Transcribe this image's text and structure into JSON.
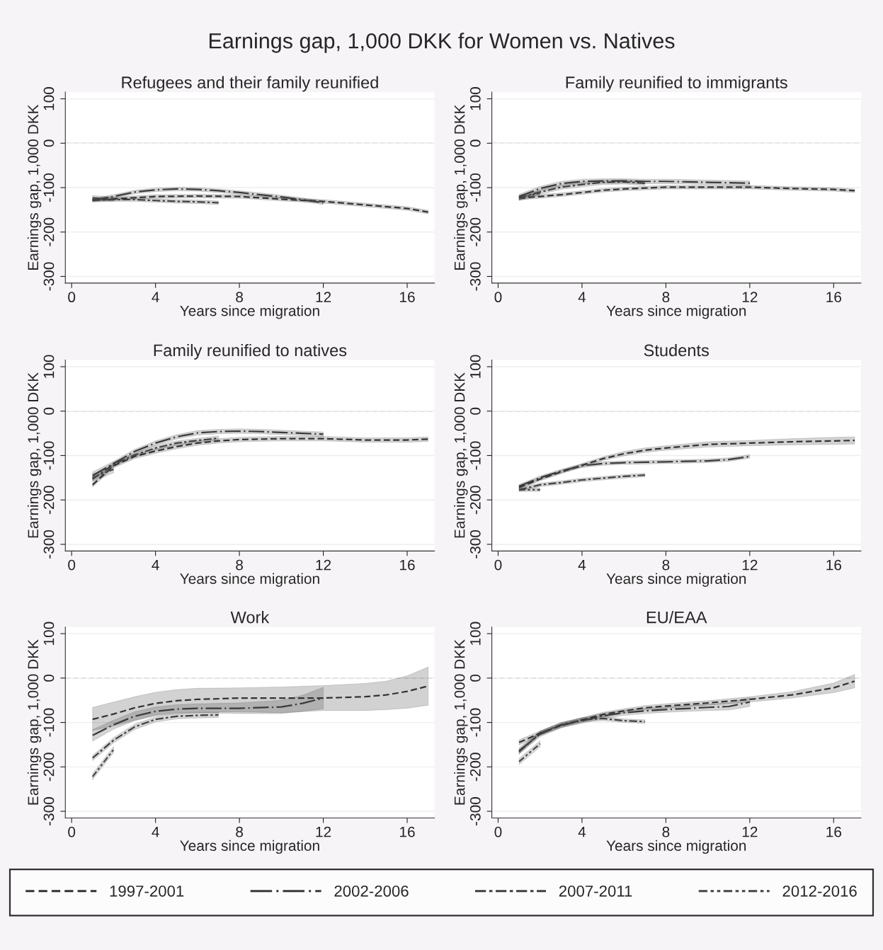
{
  "chart_data": [
    {
      "type": "line",
      "title": "Refugees and their family reunified",
      "xlabel": "Years since migration",
      "ylabel": "Earnings gap, 1,000 DKK",
      "annotations": [
        "Earnings gap, 1,000 DKK for Women vs. Natives"
      ],
      "xlim": [
        -0.3,
        17.3
      ],
      "ylim": [
        -315,
        115
      ],
      "xticks": [
        0,
        4,
        8,
        12,
        16
      ],
      "yticks": [
        -300,
        -200,
        -100,
        0,
        100
      ],
      "grid": "y",
      "ref_lines": [
        {
          "axis": "y",
          "value": 0,
          "color": "#aaaaaa",
          "line_style": "dashed"
        }
      ],
      "series": [
        {
          "color": "#333333",
          "line_style": "dashed",
          "x": [
            1,
            4,
            6,
            8,
            10,
            12,
            14,
            16,
            17
          ],
          "values": [
            -128,
            -120,
            -119,
            -120,
            -126,
            -131,
            -139,
            -147,
            -155
          ],
          "lower": [
            -132,
            -124,
            -123,
            -124,
            -130,
            -135,
            -143,
            -151,
            -159
          ],
          "upper": [
            -124,
            -116,
            -115,
            -116,
            -122,
            -127,
            -135,
            -143,
            -151
          ]
        },
        {
          "color": "#3a3a3a",
          "line_style": "longdashdot",
          "x": [
            1,
            2,
            3,
            4,
            5,
            6,
            7,
            8,
            9,
            10,
            11,
            12
          ],
          "values": [
            -128,
            -120,
            -110,
            -105,
            -103,
            -104,
            -107,
            -111,
            -116,
            -121,
            -127,
            -134
          ],
          "lower": [
            -132,
            -124,
            -114,
            -109,
            -107,
            -108,
            -111,
            -115,
            -120,
            -125,
            -131,
            -138
          ],
          "upper": [
            -124,
            -116,
            -106,
            -101,
            -99,
            -100,
            -103,
            -107,
            -112,
            -117,
            -123,
            -130
          ]
        },
        {
          "color": "#404040",
          "line_style": "dashdot",
          "x": [
            1,
            2,
            3,
            4,
            5,
            6,
            7
          ],
          "values": [
            -128,
            -127,
            -127,
            -129,
            -131,
            -132,
            -134
          ],
          "lower": [
            -132,
            -131,
            -131,
            -133,
            -135,
            -136,
            -138
          ],
          "upper": [
            -124,
            -123,
            -123,
            -125,
            -127,
            -128,
            -130
          ]
        },
        {
          "color": "#474747",
          "line_style": "dashdotdot",
          "x": [
            1,
            2
          ],
          "values": [
            -123,
            -126
          ],
          "lower": [
            -128,
            -131
          ],
          "upper": [
            -118,
            -121
          ]
        }
      ]
    },
    {
      "type": "line",
      "title": "Family reunified to immigrants",
      "xlabel": "Years since migration",
      "ylabel": "Earnings gap, 1,000 DKK",
      "xlim": [
        -0.3,
        17.3
      ],
      "ylim": [
        -315,
        115
      ],
      "xticks": [
        0,
        4,
        8,
        12,
        16
      ],
      "yticks": [
        -300,
        -200,
        -100,
        0,
        100
      ],
      "grid": "y",
      "ref_lines": [
        {
          "axis": "y",
          "value": 0,
          "color": "#aaaaaa",
          "line_style": "dashed"
        }
      ],
      "series": [
        {
          "color": "#333333",
          "line_style": "dashed",
          "x": [
            1,
            2,
            3,
            4,
            5,
            6,
            7,
            8,
            10,
            12,
            14,
            16,
            17
          ],
          "values": [
            -124,
            -120,
            -116,
            -111,
            -106,
            -103,
            -101,
            -99,
            -99,
            -99,
            -102,
            -104,
            -107
          ],
          "lower": [
            -128,
            -124,
            -120,
            -115,
            -110,
            -107,
            -105,
            -103,
            -103,
            -103,
            -106,
            -108,
            -111
          ],
          "upper": [
            -120,
            -116,
            -112,
            -107,
            -102,
            -99,
            -97,
            -95,
            -95,
            -95,
            -98,
            -100,
            -103
          ]
        },
        {
          "color": "#3a3a3a",
          "line_style": "longdashdot",
          "x": [
            1,
            2,
            3,
            4,
            5,
            6,
            7,
            8,
            9,
            10,
            11,
            12
          ],
          "values": [
            -120,
            -102,
            -91,
            -86,
            -85,
            -85,
            -86,
            -86,
            -87,
            -88,
            -89,
            -90
          ],
          "lower": [
            -125,
            -107,
            -96,
            -91,
            -90,
            -90,
            -91,
            -91,
            -92,
            -93,
            -94,
            -95
          ],
          "upper": [
            -115,
            -97,
            -86,
            -81,
            -80,
            -80,
            -81,
            -81,
            -82,
            -83,
            -84,
            -85
          ]
        },
        {
          "color": "#404040",
          "line_style": "dashdot",
          "x": [
            1,
            2,
            3,
            4,
            5,
            6,
            7
          ],
          "values": [
            -123,
            -110,
            -99,
            -93,
            -88,
            -87,
            -90
          ],
          "lower": [
            -128,
            -115,
            -104,
            -98,
            -93,
            -92,
            -95
          ],
          "upper": [
            -118,
            -105,
            -94,
            -88,
            -83,
            -82,
            -85
          ]
        },
        {
          "color": "#474747",
          "line_style": "dashdotdot",
          "x": [
            1,
            2
          ],
          "values": [
            -124,
            -112
          ],
          "lower": [
            -129,
            -117
          ],
          "upper": [
            -119,
            -107
          ]
        }
      ]
    },
    {
      "type": "line",
      "title": "Family reunified to natives",
      "xlabel": "Years since migration",
      "ylabel": "Earnings gap, 1,000 DKK",
      "xlim": [
        -0.3,
        17.3
      ],
      "ylim": [
        -315,
        115
      ],
      "xticks": [
        0,
        4,
        8,
        12,
        16
      ],
      "yticks": [
        -300,
        -200,
        -100,
        0,
        100
      ],
      "grid": "y",
      "ref_lines": [
        {
          "axis": "y",
          "value": 0,
          "color": "#aaaaaa",
          "line_style": "dashed"
        }
      ],
      "series": [
        {
          "color": "#333333",
          "line_style": "dashed",
          "x": [
            1,
            2,
            3,
            4,
            5,
            6,
            7,
            8,
            10,
            12,
            14,
            16,
            17
          ],
          "values": [
            -166,
            -123,
            -102,
            -90,
            -80,
            -72,
            -67,
            -64,
            -62,
            -62,
            -65,
            -65,
            -63
          ],
          "lower": [
            -171,
            -128,
            -107,
            -95,
            -85,
            -77,
            -72,
            -69,
            -67,
            -67,
            -70,
            -70,
            -68
          ],
          "upper": [
            -161,
            -118,
            -97,
            -85,
            -75,
            -67,
            -62,
            -59,
            -57,
            -57,
            -60,
            -60,
            -58
          ]
        },
        {
          "color": "#3a3a3a",
          "line_style": "longdashdot",
          "x": [
            1,
            2,
            3,
            4,
            5,
            6,
            7,
            8,
            9,
            10,
            11,
            12
          ],
          "values": [
            -145,
            -118,
            -91,
            -72,
            -58,
            -49,
            -46,
            -45,
            -46,
            -48,
            -50,
            -52
          ],
          "lower": [
            -153,
            -123,
            -96,
            -77,
            -63,
            -54,
            -51,
            -50,
            -51,
            -53,
            -55,
            -57
          ],
          "upper": [
            -137,
            -113,
            -86,
            -67,
            -53,
            -44,
            -41,
            -40,
            -41,
            -43,
            -45,
            -47
          ]
        },
        {
          "color": "#404040",
          "line_style": "dashdot",
          "x": [
            1,
            2,
            3,
            4,
            5,
            6,
            7
          ],
          "values": [
            -153,
            -120,
            -99,
            -83,
            -72,
            -66,
            -61
          ],
          "lower": [
            -158,
            -125,
            -104,
            -88,
            -77,
            -71,
            -66
          ],
          "upper": [
            -148,
            -115,
            -94,
            -78,
            -67,
            -61,
            -56
          ]
        },
        {
          "color": "#474747",
          "line_style": "dashdotdot",
          "x": [
            1,
            2
          ],
          "values": [
            -150,
            -131
          ],
          "lower": [
            -158,
            -139
          ],
          "upper": [
            -142,
            -123
          ]
        }
      ]
    },
    {
      "type": "line",
      "title": "Students",
      "xlabel": "Years since migration",
      "ylabel": "Earnings gap, 1,000 DKK",
      "xlim": [
        -0.3,
        17.3
      ],
      "ylim": [
        -315,
        115
      ],
      "xticks": [
        0,
        4,
        8,
        12,
        16
      ],
      "yticks": [
        -300,
        -200,
        -100,
        0,
        100
      ],
      "grid": "y",
      "ref_lines": [
        {
          "axis": "y",
          "value": 0,
          "color": "#aaaaaa",
          "line_style": "dashed"
        }
      ],
      "series": [
        {
          "color": "#333333",
          "line_style": "dashed",
          "x": [
            1,
            2,
            3,
            4,
            5,
            6,
            7,
            8,
            10,
            12,
            14,
            16,
            17
          ],
          "values": [
            -172,
            -153,
            -137,
            -122,
            -107,
            -96,
            -88,
            -83,
            -75,
            -72,
            -69,
            -67,
            -66
          ],
          "lower": [
            -176,
            -157,
            -141,
            -126,
            -111,
            -101,
            -93,
            -88,
            -81,
            -78,
            -76,
            -75,
            -74
          ],
          "upper": [
            -168,
            -149,
            -133,
            -118,
            -103,
            -91,
            -83,
            -78,
            -69,
            -66,
            -62,
            -59,
            -58
          ]
        },
        {
          "color": "#3a3a3a",
          "line_style": "longdashdot",
          "x": [
            1,
            2,
            3,
            4,
            5,
            6,
            7,
            8,
            9,
            10,
            11,
            12
          ],
          "values": [
            -169,
            -150,
            -135,
            -123,
            -118,
            -116,
            -115,
            -114,
            -113,
            -112,
            -109,
            -102
          ],
          "lower": [
            -173,
            -154,
            -139,
            -127,
            -122,
            -120,
            -119,
            -118,
            -117,
            -116,
            -113,
            -106
          ],
          "upper": [
            -165,
            -146,
            -131,
            -119,
            -114,
            -112,
            -111,
            -110,
            -109,
            -108,
            -105,
            -98
          ]
        },
        {
          "color": "#404040",
          "line_style": "dashdot",
          "x": [
            1,
            2,
            3,
            4,
            5,
            6,
            7
          ],
          "values": [
            -177,
            -166,
            -161,
            -155,
            -151,
            -147,
            -144
          ],
          "lower": [
            -181,
            -170,
            -165,
            -159,
            -155,
            -151,
            -148
          ],
          "upper": [
            -173,
            -162,
            -157,
            -151,
            -147,
            -143,
            -140
          ]
        },
        {
          "color": "#474747",
          "line_style": "dashdotdot",
          "x": [
            1,
            2
          ],
          "values": [
            -177,
            -177
          ],
          "lower": [
            -181,
            -181
          ],
          "upper": [
            -173,
            -173
          ]
        }
      ]
    },
    {
      "type": "line",
      "title": "Work",
      "xlabel": "Years since migration",
      "ylabel": "Earnings gap, 1,000 DKK",
      "xlim": [
        -0.3,
        17.3
      ],
      "ylim": [
        -315,
        115
      ],
      "xticks": [
        0,
        4,
        8,
        12,
        16
      ],
      "yticks": [
        -300,
        -200,
        -100,
        0,
        100
      ],
      "grid": "y",
      "ref_lines": [
        {
          "axis": "y",
          "value": 0,
          "color": "#aaaaaa",
          "line_style": "dashed"
        }
      ],
      "series": [
        {
          "color": "#333333",
          "line_style": "dashed",
          "x": [
            1,
            2,
            3,
            4,
            5,
            6,
            8,
            10,
            12,
            14,
            15,
            16,
            17
          ],
          "values": [
            -93,
            -81,
            -67,
            -57,
            -51,
            -48,
            -45,
            -45,
            -45,
            -42,
            -38,
            -30,
            -18
          ],
          "lower": [
            -118,
            -108,
            -95,
            -83,
            -78,
            -77,
            -76,
            -78,
            -73,
            -73,
            -71,
            -68,
            -61
          ],
          "upper": [
            -66,
            -54,
            -42,
            -32,
            -26,
            -23,
            -22,
            -20,
            -17,
            -12,
            -7,
            5,
            25
          ]
        },
        {
          "color": "#3a3a3a",
          "line_style": "longdashdot",
          "x": [
            1,
            2,
            3,
            4,
            5,
            6,
            8,
            10,
            11,
            12
          ],
          "values": [
            -129,
            -105,
            -86,
            -75,
            -70,
            -68,
            -68,
            -65,
            -57,
            -45
          ],
          "lower": [
            -142,
            -115,
            -96,
            -85,
            -80,
            -78,
            -80,
            -80,
            -75,
            -69
          ],
          "upper": [
            -116,
            -95,
            -76,
            -65,
            -60,
            -58,
            -56,
            -50,
            -39,
            -21
          ]
        },
        {
          "color": "#404040",
          "line_style": "dashdot",
          "x": [
            1,
            2,
            3,
            4,
            5,
            6,
            7
          ],
          "values": [
            -180,
            -140,
            -110,
            -93,
            -86,
            -84,
            -83
          ],
          "lower": [
            -186,
            -146,
            -116,
            -99,
            -92,
            -90,
            -89
          ],
          "upper": [
            -174,
            -134,
            -104,
            -87,
            -80,
            -78,
            -77
          ]
        },
        {
          "color": "#474747",
          "line_style": "dashdotdot",
          "x": [
            1,
            2
          ],
          "values": [
            -222,
            -161
          ],
          "lower": [
            -229,
            -168
          ],
          "upper": [
            -215,
            -154
          ]
        }
      ]
    },
    {
      "type": "line",
      "title": "EU/EAA",
      "xlabel": "Years since migration",
      "ylabel": "Earnings gap, 1,000 DKK",
      "xlim": [
        -0.3,
        17.3
      ],
      "ylim": [
        -315,
        115
      ],
      "xticks": [
        0,
        4,
        8,
        12,
        16
      ],
      "yticks": [
        -300,
        -200,
        -100,
        0,
        100
      ],
      "grid": "y",
      "legend": "bottom",
      "ref_lines": [
        {
          "axis": "y",
          "value": 0,
          "color": "#aaaaaa",
          "line_style": "dashed"
        }
      ],
      "series": [
        {
          "name": "1997-2001",
          "color": "#333333",
          "line_style": "dashed",
          "x": [
            1,
            2,
            3,
            4,
            5,
            6,
            7,
            8,
            10,
            12,
            14,
            16,
            17
          ],
          "values": [
            -145,
            -124,
            -107,
            -94,
            -82,
            -74,
            -67,
            -63,
            -56,
            -48,
            -38,
            -22,
            -7
          ],
          "lower": [
            -151,
            -129,
            -112,
            -99,
            -87,
            -79,
            -72,
            -68,
            -61,
            -54,
            -45,
            -33,
            -22
          ],
          "upper": [
            -139,
            -119,
            -102,
            -89,
            -77,
            -69,
            -62,
            -58,
            -51,
            -42,
            -31,
            -11,
            8
          ]
        },
        {
          "name": "2002-2006",
          "color": "#3a3a3a",
          "line_style": "longdashdot",
          "x": [
            1,
            2,
            3,
            4,
            5,
            6,
            7,
            8,
            10,
            11,
            12
          ],
          "values": [
            -164,
            -126,
            -106,
            -96,
            -85,
            -78,
            -74,
            -71,
            -66,
            -64,
            -54
          ],
          "lower": [
            -171,
            -132,
            -112,
            -102,
            -91,
            -84,
            -80,
            -77,
            -73,
            -72,
            -64
          ],
          "upper": [
            -157,
            -120,
            -100,
            -90,
            -79,
            -72,
            -68,
            -65,
            -59,
            -56,
            -44
          ]
        },
        {
          "name": "2007-2011",
          "color": "#404040",
          "line_style": "dashdot",
          "x": [
            1,
            2,
            3,
            4,
            5,
            6,
            7
          ],
          "values": [
            -166,
            -124,
            -105,
            -94,
            -91,
            -96,
            -98
          ],
          "lower": [
            -171,
            -129,
            -110,
            -99,
            -96,
            -100,
            -102
          ],
          "upper": [
            -161,
            -119,
            -100,
            -89,
            -86,
            -92,
            -94
          ]
        },
        {
          "name": "2012-2016",
          "color": "#474747",
          "line_style": "dashdotdot",
          "x": [
            1,
            2
          ],
          "values": [
            -188,
            -148
          ],
          "lower": [
            -195,
            -155
          ],
          "upper": [
            -181,
            -141
          ]
        }
      ]
    }
  ]
}
